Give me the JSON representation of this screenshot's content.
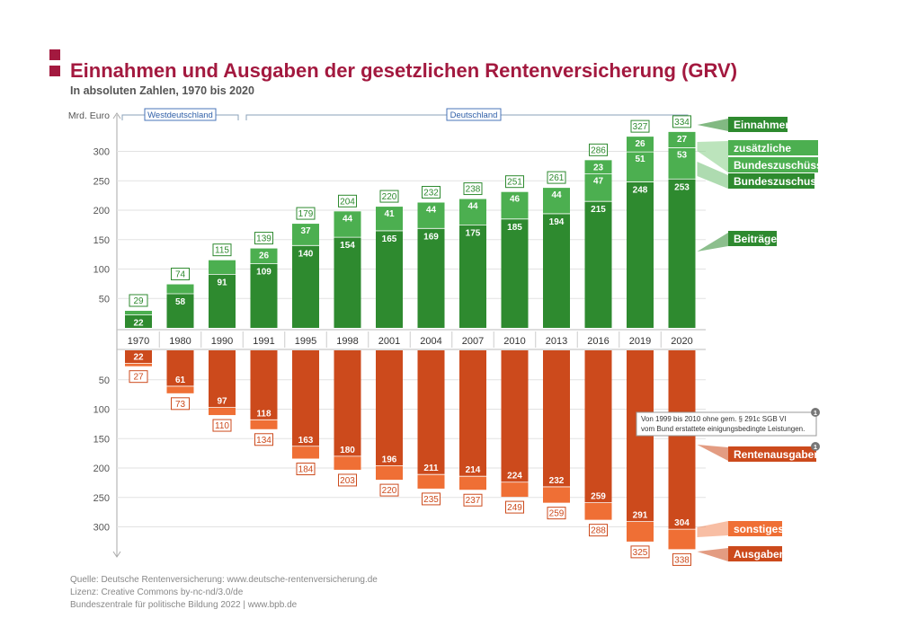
{
  "header": {
    "title": "Einnahmen und Ausgaben der gesetzlichen Rentenversicherung (GRV)",
    "subtitle": "In absoluten Zahlen, 1970 bis 2020"
  },
  "footer": {
    "source": "Quelle: Deutsche Rentenversicherung: www.deutsche-rentenversicherung.de",
    "license": "Lizenz: Creative Commons by-nc-nd/3.0/de",
    "publisher": "Bundeszentrale  für  politische  Bildung  2022  |  www.bpb.de"
  },
  "colors": {
    "brand": "#a3193f",
    "beitraege": "#2e8a2f",
    "bundeszuschuss": "#4caf50",
    "zusaetzliche": "#8fd28f",
    "rentenausgaben": "#cc4a1c",
    "sonstiges": "#ef6f35"
  },
  "chart_data": {
    "type": "bar",
    "ylabel": "Mrd. Euro",
    "ylim_top": [
      0,
      350
    ],
    "ylim_bottom": [
      0,
      350
    ],
    "yticks_top": [
      50,
      100,
      150,
      200,
      250,
      300
    ],
    "yticks_bottom": [
      50,
      100,
      150,
      200,
      250,
      300
    ],
    "periods": [
      {
        "label": "Westdeutschland"
      },
      {
        "label": "Deutschland"
      }
    ],
    "categories": [
      "1970",
      "1980",
      "1990",
      "1991",
      "1995",
      "1998",
      "2001",
      "2004",
      "2007",
      "2010",
      "2013",
      "2016",
      "2019",
      "2020"
    ],
    "income": {
      "beitraege": [
        22,
        58,
        91,
        109,
        140,
        154,
        165,
        169,
        175,
        185,
        194,
        215,
        248,
        253
      ],
      "bundeszuschuss": [
        null,
        null,
        null,
        26,
        37,
        44,
        41,
        44,
        44,
        46,
        44,
        47,
        51,
        53
      ],
      "zusaetzliche": [
        null,
        null,
        null,
        null,
        null,
        null,
        null,
        null,
        null,
        null,
        null,
        23,
        26,
        27
      ],
      "total": [
        29,
        74,
        115,
        139,
        179,
        204,
        220,
        232,
        238,
        251,
        261,
        286,
        327,
        334
      ]
    },
    "expenses": {
      "rentenausgaben": [
        22,
        61,
        97,
        118,
        163,
        180,
        196,
        211,
        214,
        224,
        232,
        259,
        291,
        304
      ],
      "total": [
        27,
        73,
        110,
        134,
        184,
        203,
        220,
        235,
        237,
        249,
        259,
        288,
        325,
        338
      ]
    },
    "legend": {
      "einnahmen": "Einnahmen",
      "zusaetzliche": "zusätzliche",
      "bundeszuschuesse": "Bundeszuschüsse",
      "bundeszuschuss": "Bundeszuschuss",
      "beitraege": "Beiträge",
      "rentenausgaben": "Rentenausgaben",
      "sonstiges": "sonstiges",
      "ausgaben": "Ausgaben"
    },
    "note": {
      "marker": "1",
      "line1": "Von 1999 bis 2010 ohne gem. § 291c SGB VI",
      "line2": "vom Bund erstattete einigungsbedingte Leistungen."
    }
  }
}
